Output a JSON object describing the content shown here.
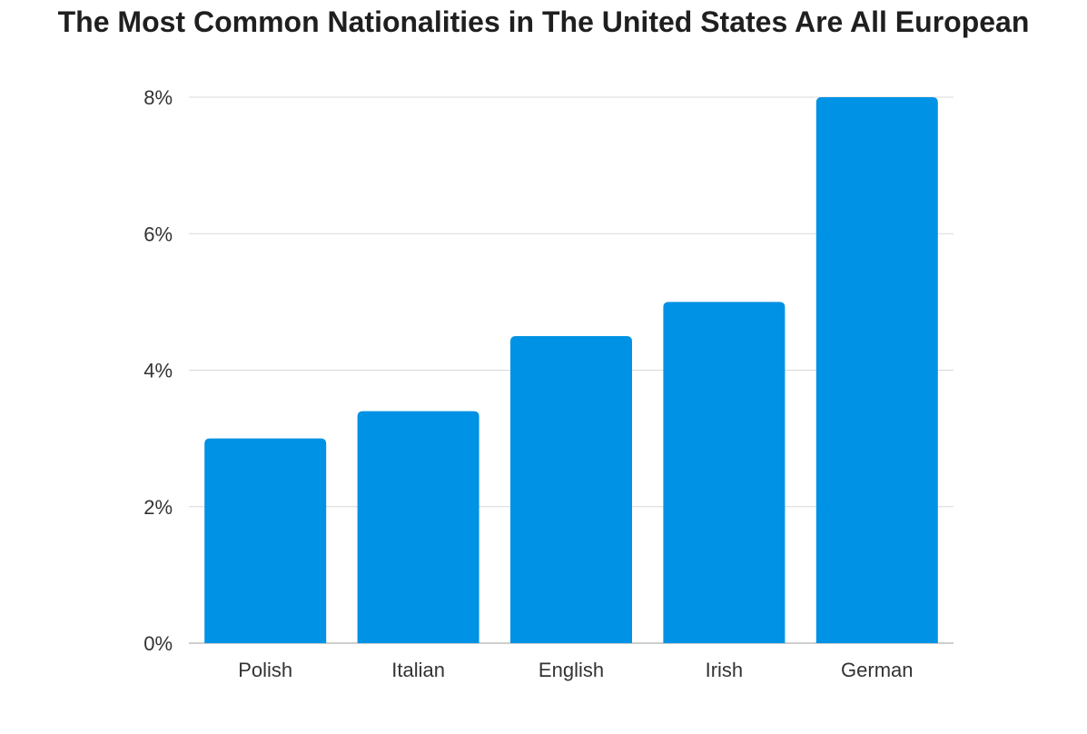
{
  "chart_data": {
    "type": "bar",
    "title": "The Most Common Nationalities in The United States Are All European",
    "xlabel": "",
    "ylabel": "",
    "categories": [
      "Polish",
      "Italian",
      "English",
      "Irish",
      "German"
    ],
    "values": [
      3.0,
      3.4,
      4.5,
      5.0,
      8.0
    ],
    "unit": "%",
    "ylim": [
      0,
      8
    ],
    "yticks": [
      0,
      2,
      4,
      6,
      8
    ],
    "ytick_labels": [
      "0%",
      "2%",
      "4%",
      "6%",
      "8%"
    ],
    "grid": true,
    "legend": "none",
    "bar_color": "#0092e4",
    "grid_color": "#d9d9d9",
    "axis_color": "#bdbdbd"
  }
}
